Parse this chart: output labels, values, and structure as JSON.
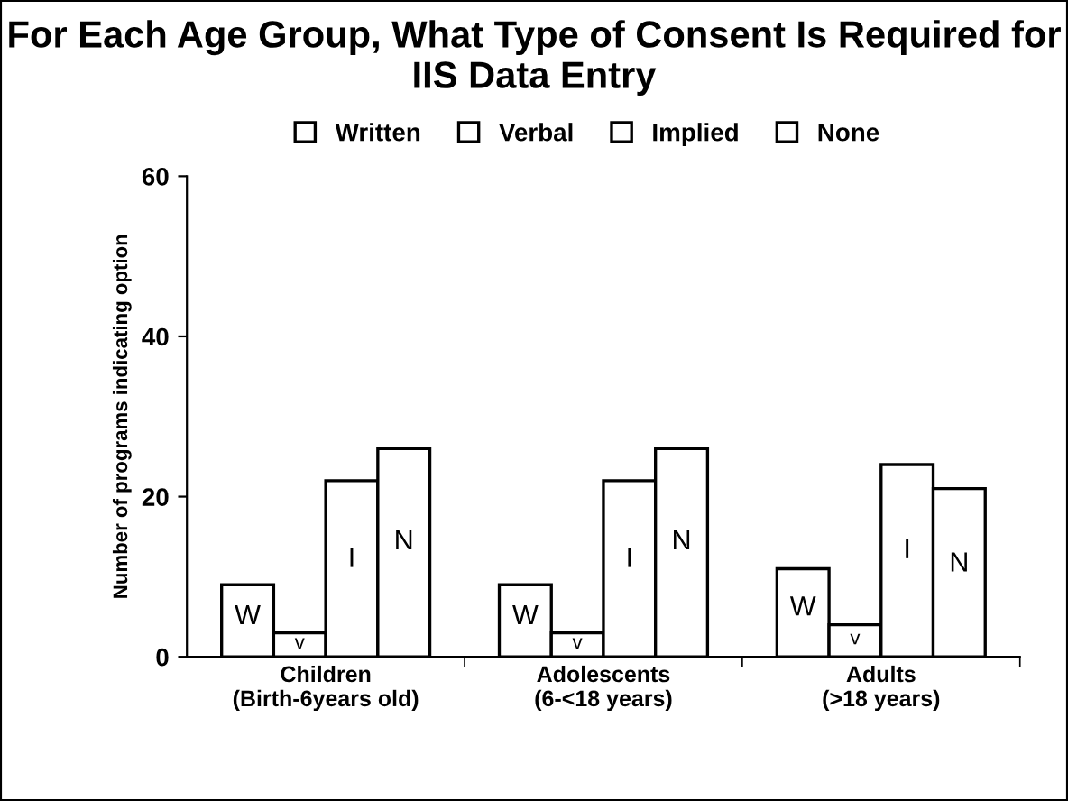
{
  "chart_data": {
    "type": "bar",
    "title": "For Each Age Group, What Type of Consent Is Required for IIS Data Entry",
    "ylabel": "Number of programs indicating option",
    "categories": [
      "Children\n(Birth-6years old)",
      "Adolescents\n(6-<18 years)",
      "Adults\n(>18 years)"
    ],
    "series": [
      {
        "name": "Written",
        "color": "#ffffff",
        "values": [
          9,
          9,
          11
        ],
        "value_labels": [
          "W",
          "W",
          "W"
        ]
      },
      {
        "name": "Verbal",
        "color": "#ffffff",
        "values": [
          3,
          3,
          4
        ],
        "value_labels": [
          "v",
          "v",
          "v"
        ]
      },
      {
        "name": "Implied",
        "color": "#ffffff",
        "values": [
          22,
          22,
          24
        ],
        "value_labels": [
          "I",
          "I",
          "I"
        ]
      },
      {
        "name": "None",
        "color": "#ffffff",
        "values": [
          26,
          26,
          21
        ],
        "value_labels": [
          "N",
          "N",
          "N"
        ]
      }
    ],
    "ylim": [
      0,
      60
    ],
    "yticks": [
      0,
      20,
      40,
      60
    ],
    "grid": false,
    "legend": "top"
  }
}
